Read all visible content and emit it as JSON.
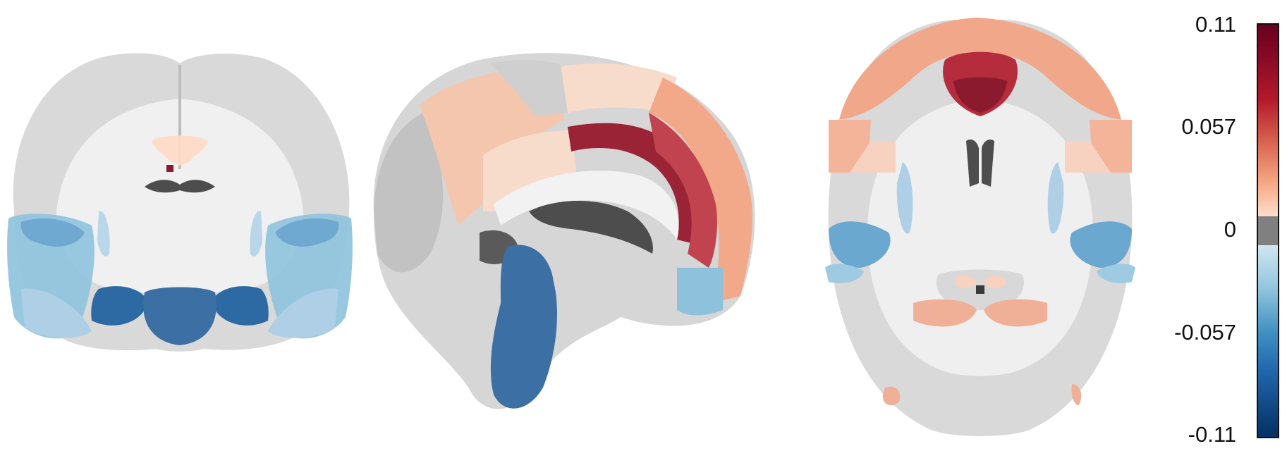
{
  "figure": {
    "views": [
      {
        "name": "coronal"
      },
      {
        "name": "sagittal"
      },
      {
        "name": "axial"
      }
    ]
  },
  "colorbar": {
    "ticks": [
      "0.11",
      "0.057",
      "0",
      "-0.057",
      "-0.11"
    ],
    "min": -0.11,
    "max": 0.11,
    "colormap": "RdBu_r",
    "colors": {
      "max": "#67001f",
      "high": "#b2182b",
      "mid_high": "#d6604d",
      "low_pos": "#f4a582",
      "near_zero_pos": "#fddbc7",
      "zero": "#808080",
      "near_zero_neg": "#d1e5f0",
      "low_neg": "#92c5de",
      "mid_low": "#4393c3",
      "low": "#2166ac",
      "min": "#053061"
    }
  }
}
